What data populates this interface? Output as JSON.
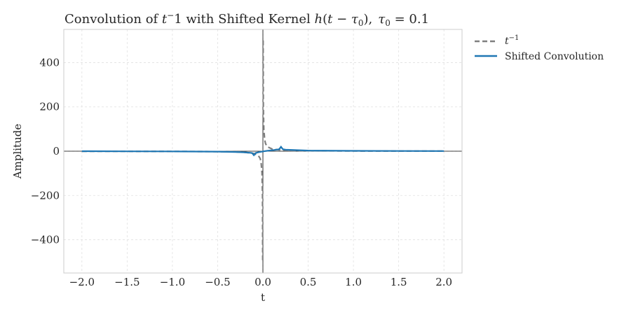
{
  "chart_data": {
    "type": "line",
    "title": {
      "prefix": "Convolution of ",
      "t": "t",
      "exp": "−",
      "after_exp": "1 with Shifted Kernel ",
      "h": "h",
      "paren_open": "(",
      "t2": "t",
      "minus": " − ",
      "tau": "τ",
      "sub0": "0",
      "paren_close": "),",
      "tau2": "τ",
      "sub02": "0",
      "eq": " = 0.1"
    },
    "xlabel": "t",
    "ylabel": "Amplitude",
    "xlim": [
      -2.2,
      2.2
    ],
    "ylim": [
      -550,
      550
    ],
    "xticks": [
      -2.0,
      -1.5,
      -1.0,
      -0.5,
      0.0,
      0.5,
      1.0,
      1.5,
      2.0
    ],
    "xtick_labels": [
      "−2.0",
      "−1.5",
      "−1.0",
      "−0.5",
      "0.0",
      "0.5",
      "1.0",
      "1.5",
      "2.0"
    ],
    "yticks": [
      -400,
      -200,
      0,
      200,
      400
    ],
    "ytick_labels": [
      "−400",
      "−200",
      "0",
      "200",
      "400"
    ],
    "grid": true,
    "legend_position": "outside-top-right",
    "series": [
      {
        "name_base": "t",
        "name_sup": "−1",
        "style": "dashed",
        "color": "#7f7f7f",
        "x": [
          -2.0,
          -1.5,
          -1.0,
          -0.5,
          -0.3,
          -0.2,
          -0.1,
          -0.05,
          -0.03,
          -0.02,
          -0.01,
          -0.005,
          -0.002,
          0.002,
          0.005,
          0.01,
          0.02,
          0.03,
          0.05,
          0.1,
          0.2,
          0.3,
          0.5,
          1.0,
          1.5,
          2.0
        ],
        "y": [
          -0.5,
          -0.67,
          -1,
          -2,
          -3.3,
          -5,
          -10,
          -20,
          -33,
          -50,
          -100,
          -200,
          -500,
          500,
          200,
          100,
          50,
          33,
          20,
          10,
          5,
          3.3,
          2,
          1,
          0.67,
          0.5
        ]
      },
      {
        "name": "Shifted Convolution",
        "style": "solid",
        "color": "#1f77b4",
        "x": [
          -2.0,
          -1.5,
          -1.0,
          -0.5,
          -0.3,
          -0.2,
          -0.12,
          -0.1,
          -0.08,
          -0.05,
          0.0,
          0.05,
          0.1,
          0.15,
          0.18,
          0.2,
          0.22,
          0.25,
          0.3,
          0.5,
          1.0,
          1.5,
          2.0
        ],
        "y": [
          0,
          -0.5,
          -1,
          -2,
          -3.5,
          -5,
          -8,
          -18,
          -8,
          -5,
          -1,
          2,
          4,
          7,
          9,
          20,
          9,
          7,
          6,
          3,
          1.5,
          1,
          0.5
        ]
      }
    ],
    "reference_lines": {
      "x0": true,
      "y0": true,
      "color": "#000000"
    }
  }
}
